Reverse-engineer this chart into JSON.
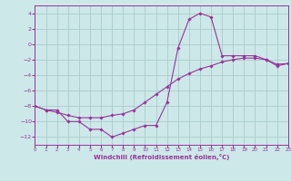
{
  "xlabel": "Windchill (Refroidissement éolien,°C)",
  "bg_color": "#cce8e8",
  "grid_color": "#aacccc",
  "line_color": "#993399",
  "x_hours": [
    0,
    1,
    2,
    3,
    4,
    5,
    6,
    7,
    8,
    9,
    10,
    11,
    12,
    13,
    14,
    15,
    16,
    17,
    18,
    19,
    20,
    21,
    22,
    23
  ],
  "windchill": [
    -8,
    -8.5,
    -8.5,
    -10,
    -10,
    -11,
    -11,
    -12,
    -11.5,
    -11,
    -10.5,
    -10.5,
    -7.5,
    -0.5,
    3.2,
    4.0,
    3.5,
    -1.5,
    -1.5,
    -1.5,
    -1.5,
    -2.0,
    -2.8,
    -2.5
  ],
  "temp": [
    -8,
    -8.5,
    -8.8,
    -9.2,
    -9.5,
    -9.5,
    -9.5,
    -9.2,
    -9.0,
    -8.5,
    -7.5,
    -6.5,
    -5.5,
    -4.5,
    -3.8,
    -3.2,
    -2.8,
    -2.3,
    -2.0,
    -1.8,
    -1.8,
    -2.0,
    -2.6,
    -2.5
  ],
  "ylim": [
    -13,
    5
  ],
  "xlim": [
    0,
    23
  ],
  "yticks": [
    4,
    2,
    0,
    -2,
    -4,
    -6,
    -8,
    -10,
    -12
  ],
  "xticks": [
    0,
    1,
    2,
    3,
    4,
    5,
    6,
    7,
    8,
    9,
    10,
    11,
    12,
    13,
    14,
    15,
    16,
    17,
    18,
    19,
    20,
    21,
    22,
    23
  ]
}
